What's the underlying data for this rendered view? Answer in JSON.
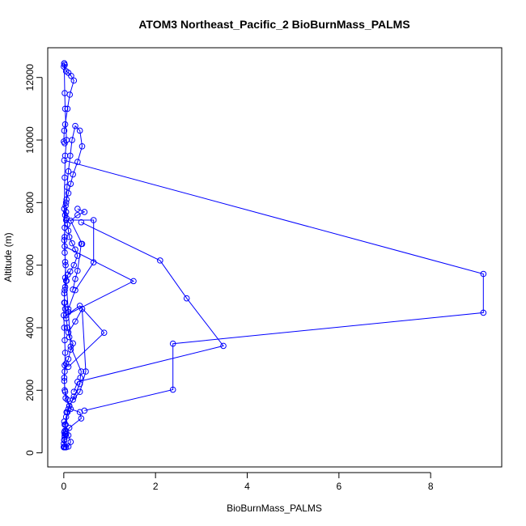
{
  "chart_data": {
    "type": "line",
    "title": "ATOM3 Northeast_Pacific_2 BioBurnMass_PALMS",
    "xlabel": "BioBurnMass_PALMS",
    "ylabel": "Altitude (m)",
    "xlim": [
      -0.35,
      9.55
    ],
    "ylim": [
      -450,
      12950
    ],
    "xticks": [
      0,
      2,
      4,
      6,
      8
    ],
    "yticks": [
      0,
      2000,
      4000,
      6000,
      8000,
      10000,
      12000
    ],
    "grid": false,
    "legend": "none",
    "markers": "open-circle",
    "color": "#0000ff",
    "series": [
      {
        "x": [
          0.0,
          0.02,
          0.01,
          0.03,
          0.02,
          0.05,
          0.08,
          0.12,
          0.04,
          0.03,
          0.01,
          0.02,
          0.05,
          0.1,
          0.15,
          0.2,
          0.12,
          0.08,
          0.05,
          0.03,
          0.02,
          0.01,
          0.03,
          0.06,
          0.09,
          0.14,
          0.22,
          0.3,
          0.25,
          0.18,
          0.12,
          0.1,
          0.08,
          0.06,
          0.05,
          0.04,
          0.06,
          0.1,
          0.15,
          0.2,
          0.3,
          0.4,
          0.35,
          0.25,
          0.18,
          0.14,
          0.1,
          0.07,
          0.05,
          0.03,
          0.02,
          0.01,
          0.02,
          0.04,
          0.03,
          0.02,
          0.01,
          0.0,
          0.01,
          0.02,
          0.03,
          0.02,
          0.01,
          0.02,
          0.08,
          0.15,
          0.35,
          0.38,
          0.12,
          0.05,
          0.02,
          0.01,
          0.0,
          0.02,
          0.01,
          0.02,
          0.04,
          0.1,
          0.22,
          0.35,
          0.36,
          0.38,
          0.15,
          0.1,
          0.05,
          0.03,
          0.02,
          0.01,
          0.02,
          0.03,
          0.06,
          0.03,
          0.02,
          0.01
        ],
        "y": [
          180,
          200,
          420,
          600,
          900,
          1150,
          1300,
          1500,
          1750,
          1950,
          2300,
          2600,
          2850,
          3000,
          3300,
          3500,
          3700,
          4000,
          4300,
          4600,
          4800,
          5100,
          5300,
          5500,
          5700,
          5800,
          6000,
          6300,
          6500,
          6700,
          6900,
          7100,
          7300,
          7500,
          7700,
          7900,
          8100,
          8300,
          8600,
          8900,
          9300,
          9800,
          10300,
          10450,
          10000,
          9500,
          9000,
          8500,
          8000,
          7600,
          7200,
          6800,
          6400,
          6000,
          5600,
          5200,
          4800,
          4400,
          4000,
          3600,
          3200,
          2800,
          2400,
          2000,
          1700,
          1400,
          1300,
          1100,
          800,
          600,
          500,
          400,
          300,
          550,
          650,
          700,
          900,
          1400,
          1800,
          2200,
          2400,
          2600,
          3400,
          4500,
          5500,
          6100,
          6900,
          7800,
          8800,
          9500,
          10000,
          11000,
          11500,
          12450
        ]
      },
      {
        "x": [
          0.0,
          0.01,
          0.02,
          0.05,
          0.1,
          0.16,
          0.22,
          0.13,
          0.08,
          0.03,
          0.01,
          0.0,
          0.02
        ],
        "y": [
          12350,
          12450,
          12400,
          12200,
          12150,
          12050,
          11900,
          11450,
          11000,
          10500,
          10300,
          9950,
          9900
        ]
      },
      {
        "x": [
          0.01,
          9.15,
          9.15,
          2.38,
          2.38,
          0.45
        ],
        "y": [
          9350,
          5720,
          4480,
          3490,
          2020,
          1350
        ]
      },
      {
        "x": [
          0.05,
          0.65,
          0.65,
          0.25,
          0.1
        ],
        "y": [
          7440,
          7440,
          6090,
          5200,
          4600
        ]
      },
      {
        "x": [
          0.38,
          2.1,
          2.68,
          3.48,
          0.3,
          0.22
        ],
        "y": [
          7370,
          6150,
          4940,
          3420,
          2270,
          1950
        ]
      },
      {
        "x": [
          0.02,
          1.52,
          0.05,
          0.35,
          0.88,
          0.1
        ],
        "y": [
          6600,
          5490,
          4400,
          4700,
          3840,
          2750
        ]
      },
      {
        "x": [
          0.3,
          0.45,
          0.3,
          0.15,
          0.4,
          0.38,
          0.3,
          0.25,
          0.2
        ],
        "y": [
          7800,
          7700,
          7600,
          7420,
          6680,
          6680,
          5820,
          5560,
          5220
        ]
      },
      {
        "x": [
          0.1,
          0.25,
          0.4,
          0.48,
          0.35,
          0.2,
          0.12,
          0.06
        ],
        "y": [
          3850,
          4200,
          4600,
          2600,
          1950,
          1700,
          1500,
          1300
        ]
      },
      {
        "x": [
          0.01,
          0.05,
          0.1,
          0.15,
          0.1,
          0.05,
          0.02,
          0.0
        ],
        "y": [
          1000,
          700,
          560,
          350,
          200,
          180,
          180,
          190
        ]
      }
    ]
  }
}
